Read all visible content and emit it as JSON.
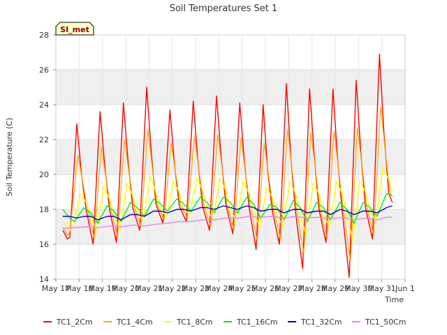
{
  "chart_data": {
    "type": "line",
    "title": "Soil Temperatures Set 1",
    "xlabel": "Time",
    "ylabel": "Soil Temperature (C)",
    "site_label": "SI_met",
    "x_range_days": [
      17,
      32
    ],
    "ylim": [
      14,
      28
    ],
    "y_ticks": [
      14,
      16,
      18,
      20,
      22,
      24,
      26,
      28
    ],
    "x_ticks": [
      {
        "day": 17,
        "label": "May 17"
      },
      {
        "day": 18,
        "label": "May 18"
      },
      {
        "day": 19,
        "label": "May 19"
      },
      {
        "day": 20,
        "label": "May 20"
      },
      {
        "day": 21,
        "label": "May 21"
      },
      {
        "day": 22,
        "label": "May 22"
      },
      {
        "day": 23,
        "label": "May 23"
      },
      {
        "day": 24,
        "label": "May 24"
      },
      {
        "day": 25,
        "label": "May 25"
      },
      {
        "day": 26,
        "label": "May 26"
      },
      {
        "day": 27,
        "label": "May 27"
      },
      {
        "day": 28,
        "label": "May 28"
      },
      {
        "day": 29,
        "label": "May 29"
      },
      {
        "day": 30,
        "label": "May 30"
      },
      {
        "day": 31,
        "label": "May 31"
      },
      {
        "day": 32,
        "label": "Jun 1"
      }
    ],
    "grid": true,
    "legend_position": "bottom",
    "series": [
      {
        "name": "TC1_2Cm",
        "color": "#ff0000",
        "width": 1.4,
        "points": [
          [
            17.3,
            16.8
          ],
          [
            17.5,
            16.3
          ],
          [
            17.6,
            16.4
          ],
          [
            17.9,
            22.9
          ],
          [
            18.1,
            20.0
          ],
          [
            18.3,
            18.0
          ],
          [
            18.6,
            16.0
          ],
          [
            18.9,
            23.6
          ],
          [
            19.1,
            20.5
          ],
          [
            19.3,
            18.0
          ],
          [
            19.6,
            16.1
          ],
          [
            19.9,
            24.1
          ],
          [
            20.1,
            20.8
          ],
          [
            20.3,
            18.1
          ],
          [
            20.6,
            16.8
          ],
          [
            20.9,
            25.0
          ],
          [
            21.1,
            21.2
          ],
          [
            21.3,
            18.3
          ],
          [
            21.6,
            17.2
          ],
          [
            21.9,
            23.7
          ],
          [
            22.1,
            20.5
          ],
          [
            22.3,
            18.2
          ],
          [
            22.6,
            17.3
          ],
          [
            22.9,
            24.2
          ],
          [
            23.1,
            20.8
          ],
          [
            23.3,
            18.2
          ],
          [
            23.6,
            16.8
          ],
          [
            23.9,
            24.5
          ],
          [
            24.1,
            21.0
          ],
          [
            24.3,
            18.3
          ],
          [
            24.6,
            16.6
          ],
          [
            24.9,
            24.1
          ],
          [
            25.1,
            20.7
          ],
          [
            25.3,
            18.1
          ],
          [
            25.6,
            15.7
          ],
          [
            25.9,
            24.0
          ],
          [
            26.1,
            20.2
          ],
          [
            26.3,
            17.9
          ],
          [
            26.6,
            16.0
          ],
          [
            26.9,
            25.2
          ],
          [
            27.1,
            20.8
          ],
          [
            27.3,
            17.8
          ],
          [
            27.6,
            14.6
          ],
          [
            27.9,
            24.9
          ],
          [
            28.1,
            21.0
          ],
          [
            28.3,
            18.0
          ],
          [
            28.6,
            16.1
          ],
          [
            28.9,
            24.9
          ],
          [
            29.1,
            20.9
          ],
          [
            29.3,
            17.9
          ],
          [
            29.6,
            14.1
          ],
          [
            29.9,
            25.4
          ],
          [
            30.1,
            21.2
          ],
          [
            30.3,
            18.1
          ],
          [
            30.6,
            16.3
          ],
          [
            30.9,
            26.9
          ],
          [
            31.1,
            22.2
          ],
          [
            31.3,
            18.9
          ],
          [
            31.45,
            18.4
          ]
        ]
      },
      {
        "name": "TC1_4Cm",
        "color": "#ffa500",
        "width": 1.2,
        "points": [
          [
            17.3,
            17.0
          ],
          [
            17.5,
            16.5
          ],
          [
            17.6,
            16.7
          ],
          [
            17.95,
            21.1
          ],
          [
            18.15,
            19.6
          ],
          [
            18.35,
            18.1
          ],
          [
            18.65,
            16.3
          ],
          [
            18.95,
            21.6
          ],
          [
            19.15,
            19.8
          ],
          [
            19.35,
            18.1
          ],
          [
            19.65,
            16.4
          ],
          [
            19.95,
            22.0
          ],
          [
            20.15,
            20.0
          ],
          [
            20.35,
            18.2
          ],
          [
            20.65,
            17.0
          ],
          [
            20.95,
            22.6
          ],
          [
            21.15,
            20.3
          ],
          [
            21.35,
            18.3
          ],
          [
            21.65,
            17.4
          ],
          [
            21.95,
            21.8
          ],
          [
            22.15,
            20.0
          ],
          [
            22.35,
            18.3
          ],
          [
            22.65,
            17.5
          ],
          [
            22.95,
            22.2
          ],
          [
            23.15,
            20.2
          ],
          [
            23.35,
            18.3
          ],
          [
            23.65,
            17.0
          ],
          [
            23.95,
            22.3
          ],
          [
            24.15,
            20.3
          ],
          [
            24.35,
            18.3
          ],
          [
            24.65,
            16.8
          ],
          [
            24.95,
            22.1
          ],
          [
            25.15,
            20.0
          ],
          [
            25.35,
            18.2
          ],
          [
            25.65,
            16.2
          ],
          [
            25.95,
            21.8
          ],
          [
            26.15,
            19.8
          ],
          [
            26.35,
            18.0
          ],
          [
            26.65,
            16.3
          ],
          [
            26.95,
            22.6
          ],
          [
            27.15,
            20.2
          ],
          [
            27.35,
            17.9
          ],
          [
            27.65,
            15.5
          ],
          [
            27.95,
            22.4
          ],
          [
            28.15,
            20.3
          ],
          [
            28.35,
            18.0
          ],
          [
            28.65,
            16.3
          ],
          [
            28.95,
            22.5
          ],
          [
            29.15,
            20.2
          ],
          [
            29.35,
            17.9
          ],
          [
            29.65,
            15.0
          ],
          [
            29.95,
            22.7
          ],
          [
            30.15,
            20.5
          ],
          [
            30.35,
            18.2
          ],
          [
            30.65,
            16.5
          ],
          [
            30.95,
            23.9
          ],
          [
            31.15,
            21.3
          ],
          [
            31.35,
            19.0
          ],
          [
            31.45,
            18.7
          ]
        ]
      },
      {
        "name": "TC1_8Cm",
        "color": "#ffff00",
        "width": 1.4,
        "points": [
          [
            17.3,
            17.3
          ],
          [
            17.6,
            16.8
          ],
          [
            17.75,
            17.0
          ],
          [
            18.05,
            18.9
          ],
          [
            18.3,
            18.4
          ],
          [
            18.5,
            17.6
          ],
          [
            18.75,
            16.8
          ],
          [
            19.05,
            19.3
          ],
          [
            19.3,
            18.6
          ],
          [
            19.5,
            17.7
          ],
          [
            19.75,
            16.8
          ],
          [
            20.05,
            19.5
          ],
          [
            20.3,
            18.8
          ],
          [
            20.5,
            17.8
          ],
          [
            20.75,
            17.3
          ],
          [
            21.05,
            19.9
          ],
          [
            21.3,
            19.0
          ],
          [
            21.5,
            18.0
          ],
          [
            21.75,
            17.6
          ],
          [
            22.05,
            19.6
          ],
          [
            22.3,
            19.0
          ],
          [
            22.5,
            18.0
          ],
          [
            22.75,
            17.7
          ],
          [
            23.05,
            19.8
          ],
          [
            23.3,
            19.1
          ],
          [
            23.5,
            18.0
          ],
          [
            23.75,
            17.4
          ],
          [
            24.05,
            19.8
          ],
          [
            24.3,
            19.1
          ],
          [
            24.5,
            18.0
          ],
          [
            24.75,
            17.3
          ],
          [
            25.05,
            19.6
          ],
          [
            25.3,
            18.9
          ],
          [
            25.5,
            17.9
          ],
          [
            25.75,
            17.0
          ],
          [
            26.05,
            19.2
          ],
          [
            26.3,
            18.7
          ],
          [
            26.5,
            17.7
          ],
          [
            26.75,
            17.0
          ],
          [
            27.05,
            19.6
          ],
          [
            27.3,
            18.9
          ],
          [
            27.5,
            17.7
          ],
          [
            27.75,
            16.5
          ],
          [
            28.05,
            19.5
          ],
          [
            28.3,
            18.9
          ],
          [
            28.5,
            17.7
          ],
          [
            28.75,
            17.0
          ],
          [
            29.05,
            19.6
          ],
          [
            29.3,
            18.9
          ],
          [
            29.5,
            17.7
          ],
          [
            29.75,
            16.2
          ],
          [
            30.05,
            19.6
          ],
          [
            30.3,
            19.0
          ],
          [
            30.5,
            17.9
          ],
          [
            30.75,
            17.3
          ],
          [
            31.05,
            20.4
          ],
          [
            31.3,
            19.7
          ],
          [
            31.45,
            19.0
          ]
        ]
      },
      {
        "name": "TC1_16Cm",
        "color": "#00ee00",
        "width": 1.4,
        "points": [
          [
            17.3,
            18.0
          ],
          [
            17.6,
            17.5
          ],
          [
            17.8,
            17.3
          ],
          [
            18.2,
            18.1
          ],
          [
            18.5,
            17.8
          ],
          [
            18.8,
            17.2
          ],
          [
            19.2,
            18.2
          ],
          [
            19.5,
            17.9
          ],
          [
            19.8,
            17.3
          ],
          [
            20.2,
            18.4
          ],
          [
            20.5,
            18.1
          ],
          [
            20.8,
            17.6
          ],
          [
            21.2,
            18.6
          ],
          [
            21.5,
            18.3
          ],
          [
            21.8,
            17.9
          ],
          [
            22.2,
            18.6
          ],
          [
            22.5,
            18.3
          ],
          [
            22.8,
            17.9
          ],
          [
            23.2,
            18.7
          ],
          [
            23.5,
            18.4
          ],
          [
            23.8,
            17.8
          ],
          [
            24.2,
            18.7
          ],
          [
            24.5,
            18.4
          ],
          [
            24.8,
            17.8
          ],
          [
            25.2,
            18.7
          ],
          [
            25.5,
            18.3
          ],
          [
            25.8,
            17.5
          ],
          [
            26.2,
            18.3
          ],
          [
            26.5,
            18.1
          ],
          [
            26.8,
            17.4
          ],
          [
            27.2,
            18.5
          ],
          [
            27.5,
            18.1
          ],
          [
            27.8,
            17.3
          ],
          [
            28.2,
            18.4
          ],
          [
            28.5,
            18.1
          ],
          [
            28.8,
            17.4
          ],
          [
            29.2,
            18.4
          ],
          [
            29.5,
            18.0
          ],
          [
            29.8,
            17.2
          ],
          [
            30.2,
            18.4
          ],
          [
            30.5,
            18.1
          ],
          [
            30.8,
            17.6
          ],
          [
            31.2,
            18.9
          ],
          [
            31.45,
            18.8
          ]
        ]
      },
      {
        "name": "TC1_32Cm",
        "color": "#0000cc",
        "width": 1.4,
        "points": [
          [
            17.3,
            17.6
          ],
          [
            17.6,
            17.6
          ],
          [
            17.9,
            17.5
          ],
          [
            18.2,
            17.6
          ],
          [
            18.5,
            17.6
          ],
          [
            18.8,
            17.4
          ],
          [
            19.2,
            17.6
          ],
          [
            19.5,
            17.6
          ],
          [
            19.8,
            17.4
          ],
          [
            20.2,
            17.7
          ],
          [
            20.5,
            17.7
          ],
          [
            20.8,
            17.6
          ],
          [
            21.2,
            17.9
          ],
          [
            21.5,
            17.9
          ],
          [
            21.8,
            17.8
          ],
          [
            22.2,
            18.0
          ],
          [
            22.5,
            18.0
          ],
          [
            22.8,
            17.9
          ],
          [
            23.2,
            18.1
          ],
          [
            23.5,
            18.1
          ],
          [
            23.8,
            18.0
          ],
          [
            24.2,
            18.2
          ],
          [
            24.5,
            18.1
          ],
          [
            24.8,
            18.0
          ],
          [
            25.2,
            18.2
          ],
          [
            25.5,
            18.1
          ],
          [
            25.8,
            17.9
          ],
          [
            26.2,
            18.0
          ],
          [
            26.5,
            18.0
          ],
          [
            26.8,
            17.8
          ],
          [
            27.2,
            18.0
          ],
          [
            27.5,
            18.0
          ],
          [
            27.8,
            17.8
          ],
          [
            28.2,
            17.9
          ],
          [
            28.5,
            17.9
          ],
          [
            28.8,
            17.7
          ],
          [
            29.2,
            18.0
          ],
          [
            29.5,
            17.9
          ],
          [
            29.8,
            17.7
          ],
          [
            30.2,
            17.9
          ],
          [
            30.5,
            17.9
          ],
          [
            30.8,
            17.8
          ],
          [
            31.2,
            18.1
          ],
          [
            31.45,
            18.2
          ]
        ]
      },
      {
        "name": "TC1_50Cm",
        "color": "#ee82ee",
        "width": 1.4,
        "points": [
          [
            17.3,
            16.9
          ],
          [
            17.8,
            16.95
          ],
          [
            18.3,
            17.0
          ],
          [
            18.8,
            16.95
          ],
          [
            19.3,
            17.05
          ],
          [
            19.8,
            17.0
          ],
          [
            20.3,
            17.1
          ],
          [
            20.8,
            17.05
          ],
          [
            21.3,
            17.15
          ],
          [
            21.8,
            17.2
          ],
          [
            22.3,
            17.3
          ],
          [
            22.8,
            17.3
          ],
          [
            23.3,
            17.4
          ],
          [
            23.8,
            17.4
          ],
          [
            24.3,
            17.5
          ],
          [
            24.8,
            17.5
          ],
          [
            25.3,
            17.6
          ],
          [
            25.8,
            17.55
          ],
          [
            26.3,
            17.6
          ],
          [
            26.8,
            17.5
          ],
          [
            27.3,
            17.6
          ],
          [
            27.8,
            17.5
          ],
          [
            28.3,
            17.55
          ],
          [
            28.8,
            17.45
          ],
          [
            29.3,
            17.55
          ],
          [
            29.8,
            17.4
          ],
          [
            30.3,
            17.5
          ],
          [
            30.8,
            17.4
          ],
          [
            31.2,
            17.55
          ],
          [
            31.45,
            17.55
          ]
        ]
      }
    ]
  }
}
